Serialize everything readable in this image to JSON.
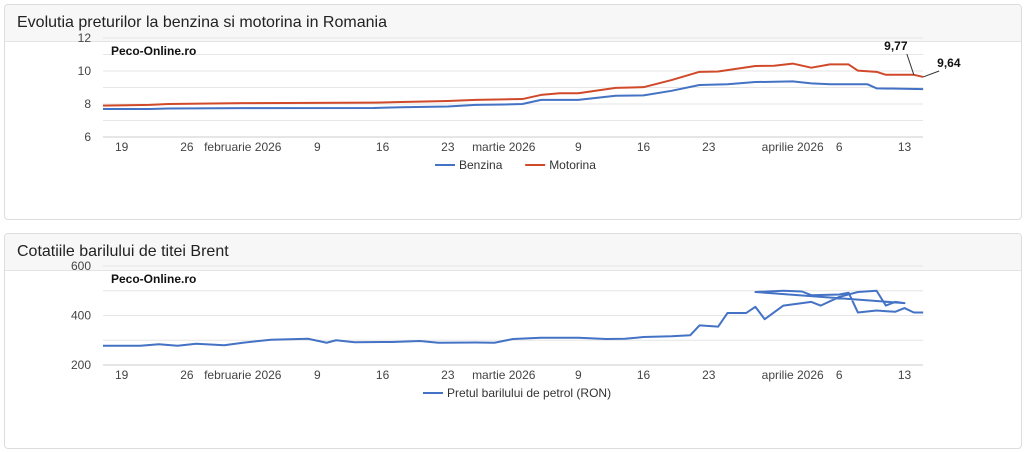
{
  "chart_data": [
    {
      "type": "line",
      "title": "Evolutia preturilor la benzina si motorina in Romania",
      "watermark": "Peco-Online.ro",
      "ylim": [
        6,
        12
      ],
      "yticks": [
        6,
        8,
        10,
        12
      ],
      "xticks": [
        {
          "date": "2026-01-19",
          "label": "19"
        },
        {
          "date": "2026-01-26",
          "label": "26"
        },
        {
          "date": "2026-02-01",
          "label": "februarie 2026"
        },
        {
          "date": "2026-02-09",
          "label": "9"
        },
        {
          "date": "2026-02-16",
          "label": "16"
        },
        {
          "date": "2026-02-23",
          "label": "23"
        },
        {
          "date": "2026-03-01",
          "label": "martie 2026"
        },
        {
          "date": "2026-03-09",
          "label": "9"
        },
        {
          "date": "2026-03-16",
          "label": "16"
        },
        {
          "date": "2026-03-23",
          "label": "23"
        },
        {
          "date": "2026-04-01",
          "label": "aprilie 2026"
        },
        {
          "date": "2026-04-06",
          "label": "6"
        },
        {
          "date": "2026-04-13",
          "label": "13"
        }
      ],
      "legend": "bottom",
      "annotations": [
        {
          "series": "Motorina",
          "date": "2026-04-14",
          "label": "9,77"
        },
        {
          "series": "Motorina",
          "date": "2026-04-15",
          "label": "9,64"
        }
      ],
      "series": [
        {
          "name": "Benzina",
          "color": "#4472c4",
          "points": [
            [
              "2026-01-17",
              7.7
            ],
            [
              "2026-01-22",
              7.7
            ],
            [
              "2026-01-24",
              7.73
            ],
            [
              "2026-02-01",
              7.75
            ],
            [
              "2026-02-15",
              7.76
            ],
            [
              "2026-02-18",
              7.8
            ],
            [
              "2026-02-23",
              7.85
            ],
            [
              "2026-02-26",
              7.95
            ],
            [
              "2026-03-01",
              7.97
            ],
            [
              "2026-03-03",
              8.0
            ],
            [
              "2026-03-05",
              8.25
            ],
            [
              "2026-03-09",
              8.25
            ],
            [
              "2026-03-13",
              8.5
            ],
            [
              "2026-03-16",
              8.52
            ],
            [
              "2026-03-19",
              8.8
            ],
            [
              "2026-03-22",
              9.15
            ],
            [
              "2026-03-25",
              9.2
            ],
            [
              "2026-03-28",
              9.33
            ],
            [
              "2026-04-01",
              9.37
            ],
            [
              "2026-04-03",
              9.25
            ],
            [
              "2026-04-05",
              9.2
            ],
            [
              "2026-04-09",
              9.2
            ],
            [
              "2026-04-10",
              8.95
            ],
            [
              "2026-04-15",
              8.9
            ]
          ]
        },
        {
          "name": "Motorina",
          "color": "#d0492a",
          "points": [
            [
              "2026-01-17",
              7.9
            ],
            [
              "2026-01-22",
              7.95
            ],
            [
              "2026-01-24",
              8.0
            ],
            [
              "2026-02-01",
              8.05
            ],
            [
              "2026-02-15",
              8.08
            ],
            [
              "2026-02-18",
              8.12
            ],
            [
              "2026-02-23",
              8.18
            ],
            [
              "2026-02-26",
              8.25
            ],
            [
              "2026-03-01",
              8.28
            ],
            [
              "2026-03-03",
              8.3
            ],
            [
              "2026-03-05",
              8.55
            ],
            [
              "2026-03-07",
              8.65
            ],
            [
              "2026-03-09",
              8.65
            ],
            [
              "2026-03-13",
              8.98
            ],
            [
              "2026-03-16",
              9.02
            ],
            [
              "2026-03-19",
              9.45
            ],
            [
              "2026-03-22",
              9.95
            ],
            [
              "2026-03-24",
              9.97
            ],
            [
              "2026-03-28",
              10.3
            ],
            [
              "2026-03-30",
              10.32
            ],
            [
              "2026-04-01",
              10.45
            ],
            [
              "2026-04-03",
              10.2
            ],
            [
              "2026-04-05",
              10.4
            ],
            [
              "2026-04-07",
              10.4
            ],
            [
              "2026-04-08",
              10.02
            ],
            [
              "2026-04-10",
              9.95
            ],
            [
              "2026-04-11",
              9.77
            ],
            [
              "2026-04-14",
              9.77
            ],
            [
              "2026-04-15",
              9.64
            ]
          ]
        }
      ]
    },
    {
      "type": "line",
      "title": "Cotatiile barilului de titei Brent",
      "watermark": "Peco-Online.ro",
      "ylim": [
        200,
        600
      ],
      "yticks": [
        200,
        400,
        600
      ],
      "xticks": [
        {
          "date": "2026-01-19",
          "label": "19"
        },
        {
          "date": "2026-01-26",
          "label": "26"
        },
        {
          "date": "2026-02-01",
          "label": "februarie 2026"
        },
        {
          "date": "2026-02-09",
          "label": "9"
        },
        {
          "date": "2026-02-16",
          "label": "16"
        },
        {
          "date": "2026-02-23",
          "label": "23"
        },
        {
          "date": "2026-03-01",
          "label": "martie 2026"
        },
        {
          "date": "2026-03-09",
          "label": "9"
        },
        {
          "date": "2026-03-16",
          "label": "16"
        },
        {
          "date": "2026-03-23",
          "label": "23"
        },
        {
          "date": "2026-04-01",
          "label": "aprilie 2026"
        },
        {
          "date": "2026-04-06",
          "label": "6"
        },
        {
          "date": "2026-04-13",
          "label": "13"
        }
      ],
      "legend": "bottom",
      "series": [
        {
          "name": "Pretul barilului de petrol (RON)",
          "color": "#4472c4",
          "points": [
            [
              "2026-01-17",
              278
            ],
            [
              "2026-01-21",
              278
            ],
            [
              "2026-01-23",
              284
            ],
            [
              "2026-01-25",
              278
            ],
            [
              "2026-01-27",
              286
            ],
            [
              "2026-01-30",
              280
            ],
            [
              "2026-02-01",
              290
            ],
            [
              "2026-02-04",
              302
            ],
            [
              "2026-02-08",
              306
            ],
            [
              "2026-02-10",
              290
            ],
            [
              "2026-02-11",
              300
            ],
            [
              "2026-02-13",
              292
            ],
            [
              "2026-02-17",
              293
            ],
            [
              "2026-02-20",
              297
            ],
            [
              "2026-02-22",
              290
            ],
            [
              "2026-02-26",
              291
            ],
            [
              "2026-02-28",
              290
            ],
            [
              "2026-03-02",
              305
            ],
            [
              "2026-03-05",
              310
            ],
            [
              "2026-03-09",
              310
            ],
            [
              "2026-03-12",
              305
            ],
            [
              "2026-03-14",
              306
            ],
            [
              "2026-03-16",
              313
            ],
            [
              "2026-03-19",
              316
            ],
            [
              "2026-03-20",
              318
            ],
            [
              "2026-03-21",
              320
            ],
            [
              "2026-03-22",
              360
            ],
            [
              "2026-03-24",
              355
            ],
            [
              "2026-03-25",
              410
            ],
            [
              "2026-03-27",
              410
            ],
            [
              "2026-03-28",
              435
            ],
            [
              "2026-03-29",
              385
            ],
            [
              "2026-03-31",
              440
            ],
            [
              "2026-04-03",
              455
            ],
            [
              "2026-04-04",
              440
            ],
            [
              "2026-04-06",
              475
            ],
            [
              "2026-04-08",
              495
            ],
            [
              "2026-04-10",
              500
            ],
            [
              "2026-04-11",
              440
            ],
            [
              "2026-04-12",
              455
            ],
            [
              "2026-04-13",
              450
            ],
            [
              "2026-04-15",
              495
            ]
          ]
        }
      ]
    }
  ]
}
